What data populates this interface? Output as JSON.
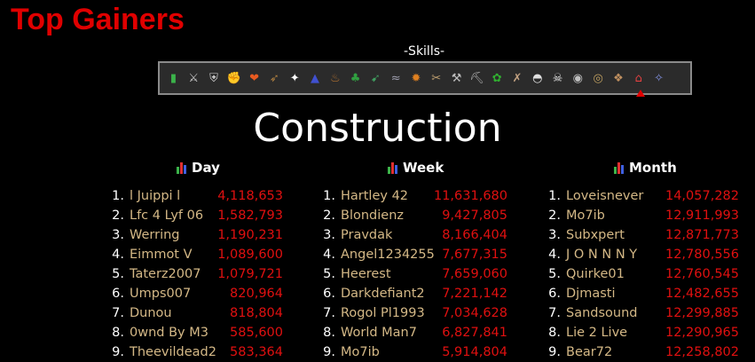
{
  "page": {
    "title": "Top Gainers"
  },
  "skills": {
    "label": "-Skills-",
    "selected_index": 23,
    "icons": [
      {
        "name": "overall-icon",
        "glyph": "▮",
        "color": "#3bb34a"
      },
      {
        "name": "attack-icon",
        "glyph": "⚔",
        "color": "#c9c9c9"
      },
      {
        "name": "defence-icon",
        "glyph": "⛨",
        "color": "#d0d0d0"
      },
      {
        "name": "strength-icon",
        "glyph": "✊",
        "color": "#d8b070"
      },
      {
        "name": "hitpoints-icon",
        "glyph": "❤",
        "color": "#e85a20"
      },
      {
        "name": "ranged-icon",
        "glyph": "➶",
        "color": "#b08040"
      },
      {
        "name": "prayer-icon",
        "glyph": "✦",
        "color": "#ffffff"
      },
      {
        "name": "magic-icon",
        "glyph": "▲",
        "color": "#4050d0"
      },
      {
        "name": "cooking-icon",
        "glyph": "♨",
        "color": "#b07030"
      },
      {
        "name": "woodcutting-icon",
        "glyph": "♣",
        "color": "#30a040"
      },
      {
        "name": "fletching-icon",
        "glyph": "➹",
        "color": "#40a060"
      },
      {
        "name": "fishing-icon",
        "glyph": "≈",
        "color": "#a0a0b0"
      },
      {
        "name": "firemaking-icon",
        "glyph": "✹",
        "color": "#e08020"
      },
      {
        "name": "crafting-icon",
        "glyph": "✂",
        "color": "#c0a070"
      },
      {
        "name": "smithing-icon",
        "glyph": "⚒",
        "color": "#c0c0c0"
      },
      {
        "name": "mining-icon",
        "glyph": "⛏",
        "color": "#b0b0b0"
      },
      {
        "name": "herblore-icon",
        "glyph": "✿",
        "color": "#30b030"
      },
      {
        "name": "agility-icon",
        "glyph": "✗",
        "color": "#c0a080"
      },
      {
        "name": "thieving-icon",
        "glyph": "◓",
        "color": "#e0e0e0"
      },
      {
        "name": "slayer-icon",
        "glyph": "☠",
        "color": "#e0e0e0"
      },
      {
        "name": "farming-icon",
        "glyph": "◉",
        "color": "#c0c0c0"
      },
      {
        "name": "runecrafting-icon",
        "glyph": "◎",
        "color": "#c0a060"
      },
      {
        "name": "hunter-icon",
        "glyph": "❖",
        "color": "#c09060"
      },
      {
        "name": "construction-icon",
        "glyph": "⌂",
        "color": "#e04040"
      },
      {
        "name": "summoning-icon",
        "glyph": "✧",
        "color": "#8090e0"
      }
    ]
  },
  "skill_heading": "Construction",
  "columns": [
    {
      "header": "Day",
      "rows": [
        {
          "rank": "1.",
          "name": "l Juippi l",
          "value": "4,118,653"
        },
        {
          "rank": "2.",
          "name": "Lfc 4 Lyf 06",
          "value": "1,582,793"
        },
        {
          "rank": "3.",
          "name": "Werring",
          "value": "1,190,231"
        },
        {
          "rank": "4.",
          "name": "Eimmot V",
          "value": "1,089,600"
        },
        {
          "rank": "5.",
          "name": "Taterz2007",
          "value": "1,079,721"
        },
        {
          "rank": "6.",
          "name": "Umps007",
          "value": "820,964"
        },
        {
          "rank": "7.",
          "name": "Dunou",
          "value": "818,804"
        },
        {
          "rank": "8.",
          "name": "0wnd By M3",
          "value": "585,600"
        },
        {
          "rank": "9.",
          "name": "Theevildead2",
          "value": "583,364"
        }
      ]
    },
    {
      "header": "Week",
      "rows": [
        {
          "rank": "1.",
          "name": "Hartley 42",
          "value": "11,631,680"
        },
        {
          "rank": "2.",
          "name": "Blondienz",
          "value": "9,427,805"
        },
        {
          "rank": "3.",
          "name": "Pravdak",
          "value": "8,166,404"
        },
        {
          "rank": "4.",
          "name": "Angel1234255",
          "value": "7,677,315"
        },
        {
          "rank": "5.",
          "name": "Heerest",
          "value": "7,659,060"
        },
        {
          "rank": "6.",
          "name": "Darkdefiant2",
          "value": "7,221,142"
        },
        {
          "rank": "7.",
          "name": "Rogol Pl1993",
          "value": "7,034,628"
        },
        {
          "rank": "8.",
          "name": "World Man7",
          "value": "6,827,841"
        },
        {
          "rank": "9.",
          "name": "Mo7ib",
          "value": "5,914,804"
        }
      ]
    },
    {
      "header": "Month",
      "rows": [
        {
          "rank": "1.",
          "name": "Loveisnever",
          "value": "14,057,282"
        },
        {
          "rank": "2.",
          "name": "Mo7ib",
          "value": "12,911,993"
        },
        {
          "rank": "3.",
          "name": "Subxpert",
          "value": "12,871,773"
        },
        {
          "rank": "4.",
          "name": "J O N N N Y",
          "value": "12,780,556"
        },
        {
          "rank": "5.",
          "name": "Quirke01",
          "value": "12,760,545"
        },
        {
          "rank": "6.",
          "name": "Djmasti",
          "value": "12,482,655"
        },
        {
          "rank": "7.",
          "name": "Sandsound",
          "value": "12,299,885"
        },
        {
          "rank": "8.",
          "name": "Lie 2 Live",
          "value": "12,290,965"
        },
        {
          "rank": "9.",
          "name": "Bear72",
          "value": "12,258,802"
        }
      ]
    }
  ],
  "colors": {
    "title": "#e00000",
    "name": "#d4b886",
    "value": "#e01010",
    "bar_icon": [
      "#3bb34a",
      "#e03030",
      "#4060e0"
    ]
  }
}
